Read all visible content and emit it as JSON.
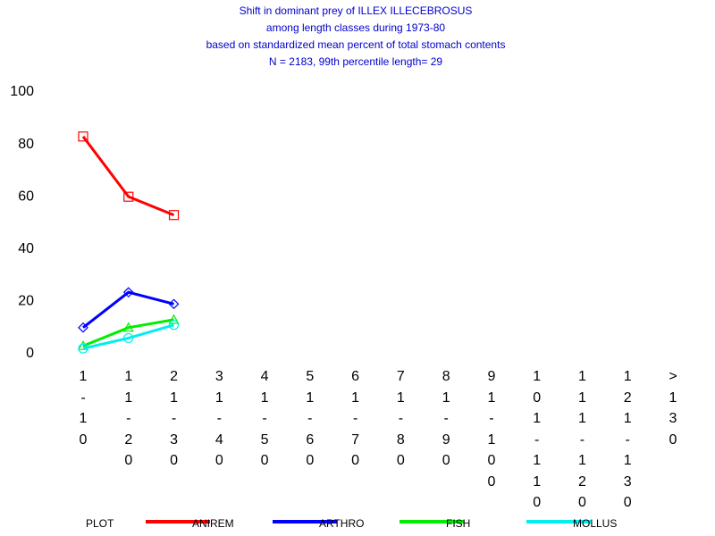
{
  "chart_data": {
    "type": "line",
    "title": [
      "Shift in dominant prey of ILLEX ILLECEBROSUS",
      "among length classes during 1973-80",
      "based on standardized mean percent of  total stomach contents",
      "N =  2183, 99th percentile  length= 29"
    ],
    "categories": [
      "1-10",
      "11-20",
      "21-30",
      "31-40",
      "41-50",
      "51-60",
      "61-70",
      "71-80",
      "81-90",
      "91-100",
      "101-110",
      "111-120",
      "121-130",
      ">130"
    ],
    "series": [
      {
        "name": "ANIREM",
        "color": "#ff0000",
        "marker": "square",
        "values": [
          83,
          60,
          53,
          null,
          null,
          null,
          null,
          null,
          null,
          null,
          null,
          null,
          null,
          null
        ]
      },
      {
        "name": "ARTHRO",
        "color": "#0000ff",
        "marker": "diamond",
        "values": [
          10,
          23.5,
          19,
          null,
          null,
          null,
          null,
          null,
          null,
          null,
          null,
          null,
          null,
          null
        ]
      },
      {
        "name": "FISH",
        "color": "#00ee00",
        "marker": "triangle",
        "values": [
          3,
          10,
          13,
          null,
          null,
          null,
          null,
          null,
          null,
          null,
          null,
          null,
          null,
          null
        ]
      },
      {
        "name": "MOLLUS",
        "color": "#00eeee",
        "marker": "circle",
        "values": [
          2,
          6,
          11,
          null,
          null,
          null,
          null,
          null,
          null,
          null,
          null,
          null,
          null,
          null
        ]
      }
    ],
    "legend_title": "PLOT",
    "ylim": [
      0,
      100
    ],
    "yticks": [
      0,
      20,
      40,
      60,
      80,
      100
    ],
    "grid": false
  }
}
